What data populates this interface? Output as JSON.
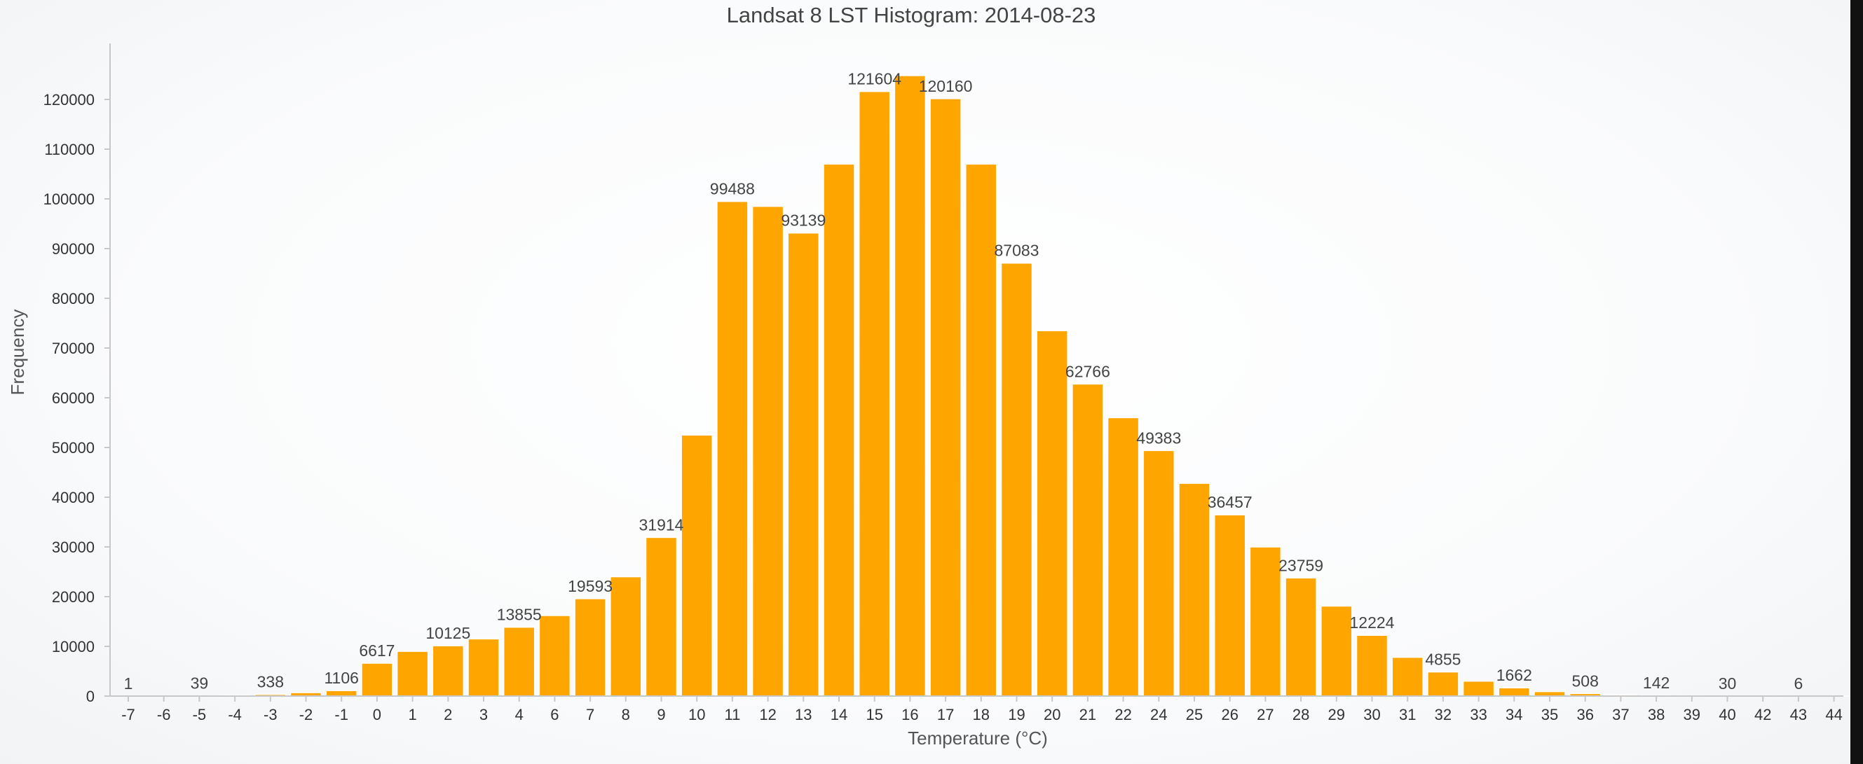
{
  "chart_data": {
    "type": "bar",
    "title": "Landsat 8 LST Histogram: 2014-08-23",
    "xlabel": "Temperature (°C)",
    "ylabel": "Frequency",
    "ylim": [
      0,
      130000
    ],
    "yticks": [
      0,
      10000,
      20000,
      30000,
      40000,
      50000,
      60000,
      70000,
      80000,
      90000,
      100000,
      110000,
      120000
    ],
    "grid": false,
    "legend": "none",
    "bar_color": "#ffa500",
    "categories": [
      "-7",
      "-6",
      "-5",
      "-4",
      "-3",
      "-2",
      "-1",
      "0",
      "1",
      "2",
      "3",
      "4",
      "6",
      "7",
      "8",
      "9",
      "10",
      "11",
      "12",
      "13",
      "14",
      "15",
      "16",
      "17",
      "18",
      "19",
      "20",
      "21",
      "22",
      "24",
      "25",
      "26",
      "27",
      "28",
      "29",
      "30",
      "31",
      "32",
      "33",
      "34",
      "35",
      "36",
      "37",
      "38",
      "39",
      "40",
      "42",
      "43",
      "44"
    ],
    "values": [
      1,
      10,
      39,
      150,
      338,
      700,
      1106,
      6617,
      9000,
      10125,
      11500,
      13855,
      16200,
      19593,
      24000,
      31914,
      52500,
      99488,
      98500,
      93139,
      107000,
      121604,
      124800,
      120160,
      107000,
      87083,
      73500,
      62766,
      56000,
      49383,
      42800,
      36457,
      30000,
      23759,
      18100,
      12224,
      7800,
      4855,
      3000,
      1662,
      900,
      508,
      250,
      142,
      80,
      30,
      15,
      6,
      3
    ],
    "data_labels": [
      {
        "category": "-7",
        "text": "1"
      },
      {
        "category": "-5",
        "text": "39"
      },
      {
        "category": "-3",
        "text": "338"
      },
      {
        "category": "-1",
        "text": "1106"
      },
      {
        "category": "0",
        "text": "6617"
      },
      {
        "category": "2",
        "text": "10125"
      },
      {
        "category": "4",
        "text": "13855"
      },
      {
        "category": "7",
        "text": "19593"
      },
      {
        "category": "9",
        "text": "31914"
      },
      {
        "category": "11",
        "text": "99488"
      },
      {
        "category": "13",
        "text": "93139"
      },
      {
        "category": "15",
        "text": "121604"
      },
      {
        "category": "17",
        "text": "120160"
      },
      {
        "category": "19",
        "text": "87083"
      },
      {
        "category": "21",
        "text": "62766"
      },
      {
        "category": "24",
        "text": "49383"
      },
      {
        "category": "26",
        "text": "36457"
      },
      {
        "category": "28",
        "text": "23759"
      },
      {
        "category": "30",
        "text": "12224"
      },
      {
        "category": "32",
        "text": "4855"
      },
      {
        "category": "34",
        "text": "1662"
      },
      {
        "category": "36",
        "text": "508"
      },
      {
        "category": "38",
        "text": "142"
      },
      {
        "category": "40",
        "text": "30"
      },
      {
        "category": "43",
        "text": "6"
      }
    ]
  }
}
